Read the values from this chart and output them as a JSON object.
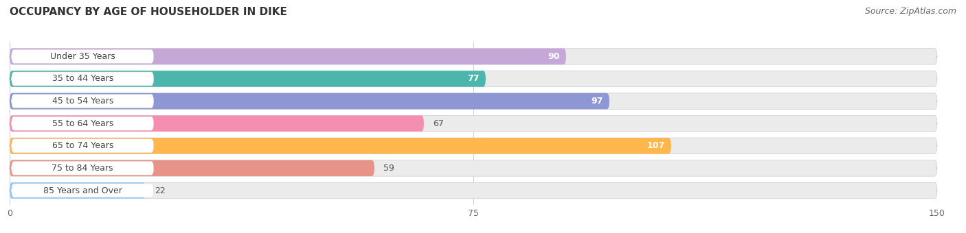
{
  "title": "OCCUPANCY BY AGE OF HOUSEHOLDER IN DIKE",
  "source": "Source: ZipAtlas.com",
  "categories": [
    "Under 35 Years",
    "35 to 44 Years",
    "45 to 54 Years",
    "55 to 64 Years",
    "65 to 74 Years",
    "75 to 84 Years",
    "85 Years and Over"
  ],
  "values": [
    90,
    77,
    97,
    67,
    107,
    59,
    22
  ],
  "colors": [
    "#c5a8d8",
    "#4db6ac",
    "#8c97d4",
    "#f48fb1",
    "#ffb74d",
    "#e8938a",
    "#90caf9"
  ],
  "xlim": [
    0,
    150
  ],
  "xticks": [
    0,
    75,
    150
  ],
  "bar_height": 0.72,
  "title_fontsize": 11,
  "label_fontsize": 9,
  "value_fontsize": 9,
  "source_fontsize": 9,
  "background_color": "#ffffff",
  "bar_bg_color": "#ebebeb",
  "label_bg_color": "#ffffff",
  "value_inside_color": "#ffffff",
  "value_outside_color": "#555555",
  "inside_threshold": 75
}
